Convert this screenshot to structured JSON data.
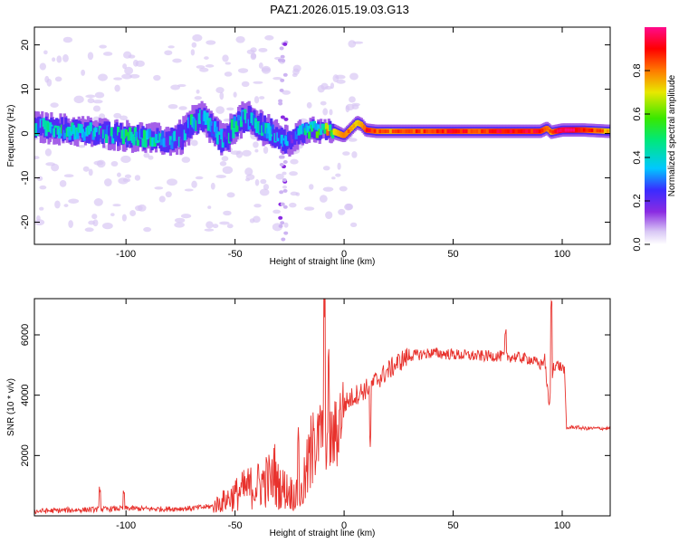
{
  "figure": {
    "title": "PAZ1.2026.015.19.03.G13"
  },
  "colors": {
    "snr_line": "#e8322d",
    "axis": "#000000"
  },
  "chart_data": [
    {
      "type": "heatmap",
      "title": "PAZ1.2026.015.19.03.G13",
      "xlabel": "Height of straight line (km)",
      "ylabel": "Frequency (Hz)",
      "xlim": [
        -142,
        122
      ],
      "ylim": [
        -25,
        24
      ],
      "xticks": [
        -100,
        -50,
        0,
        50,
        100
      ],
      "yticks": [
        -20,
        -10,
        0,
        10,
        20
      ],
      "xtick_labels": [
        "-100",
        "-50",
        "0",
        "50",
        "100"
      ],
      "ytick_labels": [
        "-20",
        "-10",
        "0",
        "10",
        "20"
      ],
      "colorbar": {
        "label": "Normalized spectral amplitude",
        "range": [
          0,
          1
        ],
        "ticks": [
          0.0,
          0.2,
          0.4,
          0.6,
          0.8
        ],
        "tick_labels": [
          "0.0",
          "0.2",
          "0.4",
          "0.6",
          "0.8"
        ],
        "colormap": "purple-blue-cyan-green-yellow-red-magenta"
      },
      "ridge": {
        "x": [
          -142,
          -130,
          -120,
          -110,
          -100,
          -90,
          -80,
          -75,
          -70,
          -65,
          -60,
          -55,
          -50,
          -45,
          -40,
          -35,
          -30,
          -25,
          -20,
          -15,
          -10,
          -5,
          0,
          3,
          6,
          8,
          10,
          15,
          20,
          30,
          40,
          50,
          60,
          70,
          80,
          90,
          93,
          95,
          100,
          110,
          122
        ],
        "freq": [
          1.5,
          1,
          0.5,
          0,
          -0.5,
          -1,
          -1.5,
          -1,
          2,
          3.5,
          1,
          -2,
          2,
          3.5,
          2,
          1,
          -1,
          -2,
          0,
          1,
          0.5,
          0.5,
          -0.5,
          1,
          2.5,
          2,
          0.8,
          0.5,
          0.5,
          0.5,
          0.5,
          0.5,
          0.5,
          0.5,
          0.5,
          0.5,
          1.2,
          0.3,
          0.8,
          0.8,
          0.5
        ],
        "amplitude": [
          0.3,
          0.35,
          0.3,
          0.3,
          0.35,
          0.35,
          0.3,
          0.3,
          0.35,
          0.3,
          0.3,
          0.3,
          0.35,
          0.3,
          0.3,
          0.3,
          0.25,
          0.25,
          0.3,
          0.4,
          0.55,
          0.7,
          0.8,
          0.75,
          0.7,
          0.75,
          0.85,
          0.8,
          0.75,
          0.8,
          0.8,
          0.85,
          0.8,
          0.85,
          0.85,
          0.85,
          0.8,
          0.75,
          0.95,
          0.85,
          0.7
        ],
        "width_hz": [
          5,
          5,
          5,
          5,
          5,
          5,
          5,
          6,
          6,
          6,
          6,
          6,
          6,
          6,
          6,
          6,
          5,
          5,
          4,
          4,
          3.5,
          3.5,
          3,
          3,
          3,
          3,
          3,
          3,
          3,
          3,
          3,
          3,
          3,
          3,
          3,
          3,
          3,
          3,
          3,
          3,
          3
        ]
      }
    },
    {
      "type": "line",
      "xlabel": "Height of straight line (km)",
      "ylabel": "SNR (10 * v/v)",
      "xlim": [
        -142,
        122
      ],
      "ylim": [
        0,
        7200
      ],
      "xticks": [
        -100,
        -50,
        0,
        50,
        100
      ],
      "yticks": [
        2000,
        4000,
        6000
      ],
      "xtick_labels": [
        "-100",
        "-50",
        "0",
        "50",
        "100"
      ],
      "ytick_labels": [
        "2000",
        "4000",
        "6000"
      ],
      "series": [
        {
          "name": "SNR",
          "x": [
            -142,
            -130,
            -120,
            -110,
            -100,
            -90,
            -80,
            -70,
            -60,
            -55,
            -50,
            -45,
            -40,
            -35,
            -30,
            -25,
            -20,
            -15,
            -12,
            -10,
            -8,
            -5,
            -2,
            0,
            5,
            10,
            15,
            20,
            25,
            30,
            35,
            40,
            50,
            60,
            70,
            80,
            85,
            90,
            92,
            94,
            96,
            98,
            100,
            101,
            102,
            105,
            110,
            115,
            122
          ],
          "y": [
            150,
            180,
            200,
            220,
            250,
            230,
            230,
            250,
            320,
            500,
            700,
            900,
            1000,
            1200,
            1000,
            800,
            600,
            2000,
            2400,
            3000,
            2600,
            2500,
            3300,
            3700,
            4000,
            4200,
            4500,
            4800,
            5100,
            5300,
            5350,
            5400,
            5350,
            5300,
            5300,
            5250,
            5200,
            5000,
            5200,
            3600,
            5000,
            5000,
            4900,
            4900,
            2900,
            2950,
            2900,
            2900,
            2900
          ],
          "spikes": [
            [
              -112,
              900
            ],
            [
              -101,
              750
            ],
            [
              -32,
              1800
            ],
            [
              -21,
              2700
            ],
            [
              -14,
              3800
            ],
            [
              -9,
              7100
            ],
            [
              -7,
              4400
            ],
            [
              -3,
              2500
            ],
            [
              12,
              2500
            ],
            [
              74,
              6000
            ],
            [
              95,
              7000
            ]
          ]
        }
      ]
    }
  ]
}
